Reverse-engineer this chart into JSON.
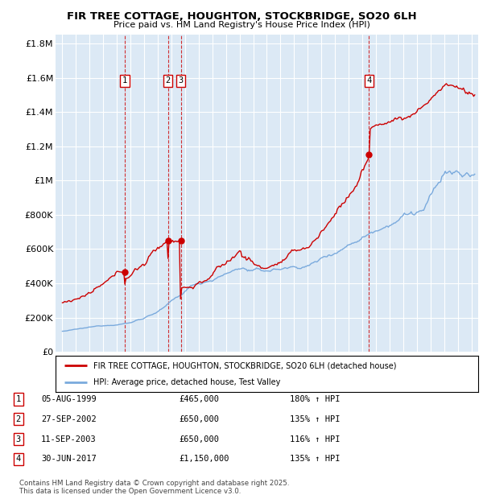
{
  "title1": "FIR TREE COTTAGE, HOUGHTON, STOCKBRIDGE, SO20 6LH",
  "title2": "Price paid vs. HM Land Registry's House Price Index (HPI)",
  "bg_color": "#dce9f5",
  "sale_dates_num": [
    1999.59,
    2002.74,
    2003.69,
    2017.49
  ],
  "sale_prices": [
    465000,
    650000,
    650000,
    1150000
  ],
  "sale_labels": [
    "1",
    "2",
    "3",
    "4"
  ],
  "hpi_line_color": "#7aaadd",
  "price_line_color": "#cc0000",
  "ylabel_vals": [
    0,
    200000,
    400000,
    600000,
    800000,
    1000000,
    1200000,
    1400000,
    1600000,
    1800000
  ],
  "ylabel_texts": [
    "£0",
    "£200K",
    "£400K",
    "£600K",
    "£800K",
    "£1M",
    "£1.2M",
    "£1.4M",
    "£1.6M",
    "£1.8M"
  ],
  "xmin": 1994.5,
  "xmax": 2025.5,
  "ymin": 0,
  "ymax": 1850000,
  "legend_label_red": "FIR TREE COTTAGE, HOUGHTON, STOCKBRIDGE, SO20 6LH (detached house)",
  "legend_label_blue": "HPI: Average price, detached house, Test Valley",
  "table_rows": [
    [
      "1",
      "05-AUG-1999",
      "£465,000",
      "180% ↑ HPI"
    ],
    [
      "2",
      "27-SEP-2002",
      "£650,000",
      "135% ↑ HPI"
    ],
    [
      "3",
      "11-SEP-2003",
      "£650,000",
      "116% ↑ HPI"
    ],
    [
      "4",
      "30-JUN-2017",
      "£1,150,000",
      "135% ↑ HPI"
    ]
  ],
  "footnote": "Contains HM Land Registry data © Crown copyright and database right 2025.\nThis data is licensed under the Open Government Licence v3.0."
}
